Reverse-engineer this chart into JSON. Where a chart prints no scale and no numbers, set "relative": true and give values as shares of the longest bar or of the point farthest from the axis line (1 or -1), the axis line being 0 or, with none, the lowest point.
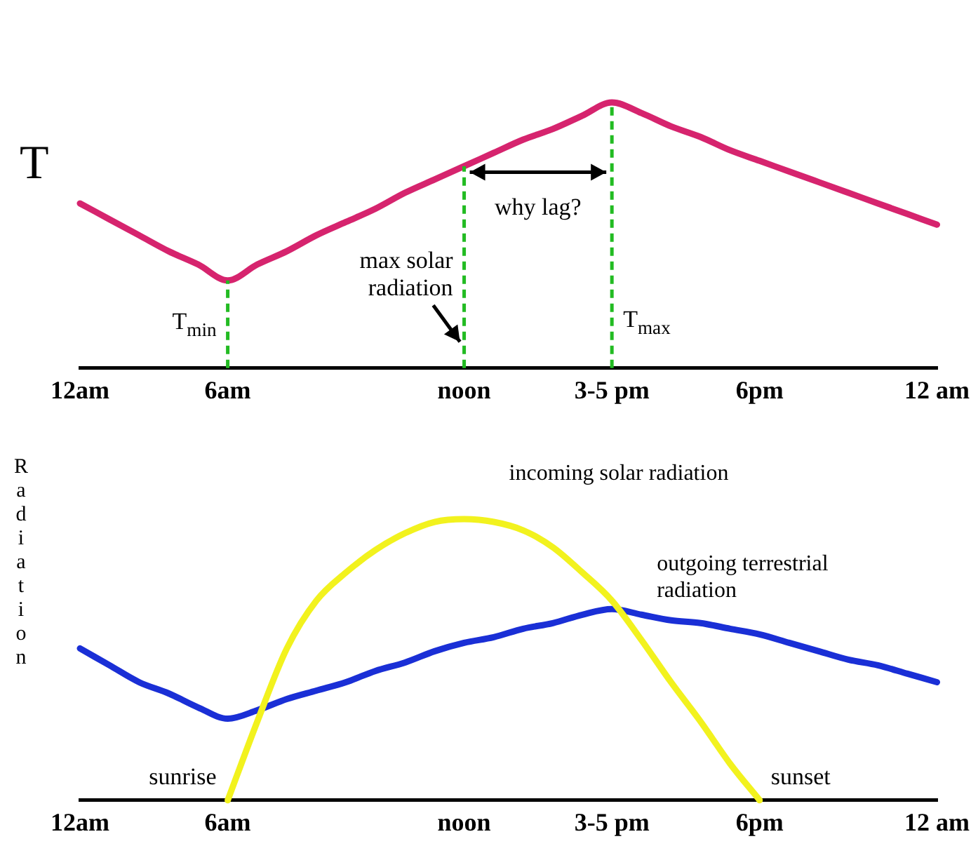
{
  "chart_data": [
    {
      "type": "line",
      "ylabel": "T",
      "relative": true,
      "categories": [
        "12am",
        null,
        null,
        null,
        null,
        "6am",
        null,
        null,
        null,
        null,
        null,
        null,
        null,
        "noon",
        null,
        null,
        null,
        null,
        "3-5 pm",
        null,
        null,
        null,
        null,
        "6pm",
        null,
        null,
        null,
        null,
        null,
        "12 am"
      ],
      "series": [
        {
          "color": "#d6246e",
          "values": [
            0.62,
            0.56,
            0.5,
            0.44,
            0.39,
            0.33,
            0.39,
            0.44,
            0.5,
            0.55,
            0.6,
            0.66,
            0.71,
            0.76,
            0.81,
            0.86,
            0.9,
            0.95,
            1,
            0.96,
            0.91,
            0.87,
            0.82,
            0.78,
            0.74,
            0.7,
            0.66,
            0.62,
            0.58,
            0.54
          ]
        }
      ],
      "ref_lines": [
        {
          "axis": "x",
          "value": "6am",
          "color": "#22bb22",
          "line_style": "dashed"
        },
        {
          "axis": "x",
          "value": "noon",
          "color": "#22bb22",
          "line_style": "dashed"
        },
        {
          "axis": "x",
          "value": "3-5 pm",
          "color": "#22bb22",
          "line_style": "dashed"
        }
      ],
      "annotations": [
        {
          "text": "T$_{min}$",
          "x": "6am",
          "y": 0.17
        },
        {
          "text": "max solar radiation",
          "x": "noon",
          "y": 0.35
        },
        "why lag?",
        {
          "text": "T$_{max}$",
          "x": "3-5 pm",
          "y": 0.18
        }
      ]
    },
    {
      "type": "line",
      "ylabel": "Radiation",
      "relative": true,
      "categories": [
        "12am",
        null,
        null,
        null,
        null,
        "6am",
        null,
        null,
        null,
        null,
        null,
        null,
        null,
        "noon",
        null,
        null,
        null,
        null,
        "3-5 pm",
        null,
        null,
        null,
        null,
        "6pm",
        null,
        null,
        null,
        null,
        null,
        "12 am"
      ],
      "series": [
        {
          "name": "incoming solar radiation",
          "color": "#f2f21e",
          "values": [
            null,
            null,
            null,
            null,
            null,
            0,
            0.28,
            0.54,
            0.71,
            0.81,
            0.89,
            0.95,
            0.99,
            1,
            0.99,
            0.96,
            0.9,
            0.81,
            0.71,
            0.57,
            0.42,
            0.28,
            0.13,
            0,
            null,
            null,
            null,
            null,
            null,
            null
          ]
        },
        {
          "name": "outgoing terrestrial radiation",
          "color": "#1a2fd6",
          "values": [
            0.54,
            0.48,
            0.42,
            0.38,
            0.33,
            0.29,
            0.32,
            0.36,
            0.39,
            0.42,
            0.46,
            0.49,
            0.53,
            0.56,
            0.58,
            0.61,
            0.63,
            0.66,
            0.68,
            0.66,
            0.64,
            0.63,
            0.61,
            0.59,
            0.56,
            0.53,
            0.5,
            0.48,
            0.45,
            0.42
          ]
        }
      ],
      "annotations": [
        {
          "text": "sunrise",
          "x": "6am",
          "y": 0
        },
        {
          "text": "sunset",
          "x": "6pm",
          "y": 0
        }
      ]
    }
  ]
}
